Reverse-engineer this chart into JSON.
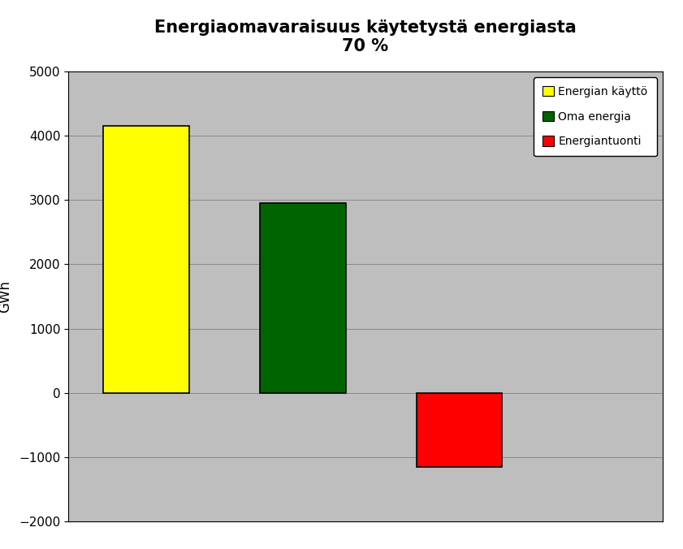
{
  "title_line1": "Energiaomavaraisuus käytetystä energiasta",
  "title_line2": "70 %",
  "categories": [
    "Energian käyttö",
    "Oma energia",
    "Energiantuonti"
  ],
  "values": [
    4150,
    2950,
    -1150
  ],
  "bar_colors": [
    "#ffff00",
    "#006400",
    "#ff0000"
  ],
  "bar_edgecolors": [
    "#000000",
    "#000000",
    "#000000"
  ],
  "ylabel": "GWh",
  "ylim": [
    -2000,
    5000
  ],
  "yticks": [
    -2000,
    -1000,
    0,
    1000,
    2000,
    3000,
    4000,
    5000
  ],
  "legend_labels": [
    "Energian käyttö",
    "Oma energia",
    "Energiantuonti"
  ],
  "legend_colors": [
    "#ffff00",
    "#006400",
    "#ff0000"
  ],
  "figure_bg_color": "#ffffff",
  "plot_bg_color": "#bebebe",
  "grid_color": "#000000",
  "title_fontsize": 15,
  "axis_fontsize": 12,
  "tick_fontsize": 11,
  "bar_width": 0.55,
  "x_positions": [
    0.5,
    1.5,
    2.5
  ],
  "xlim": [
    0.0,
    3.8
  ]
}
